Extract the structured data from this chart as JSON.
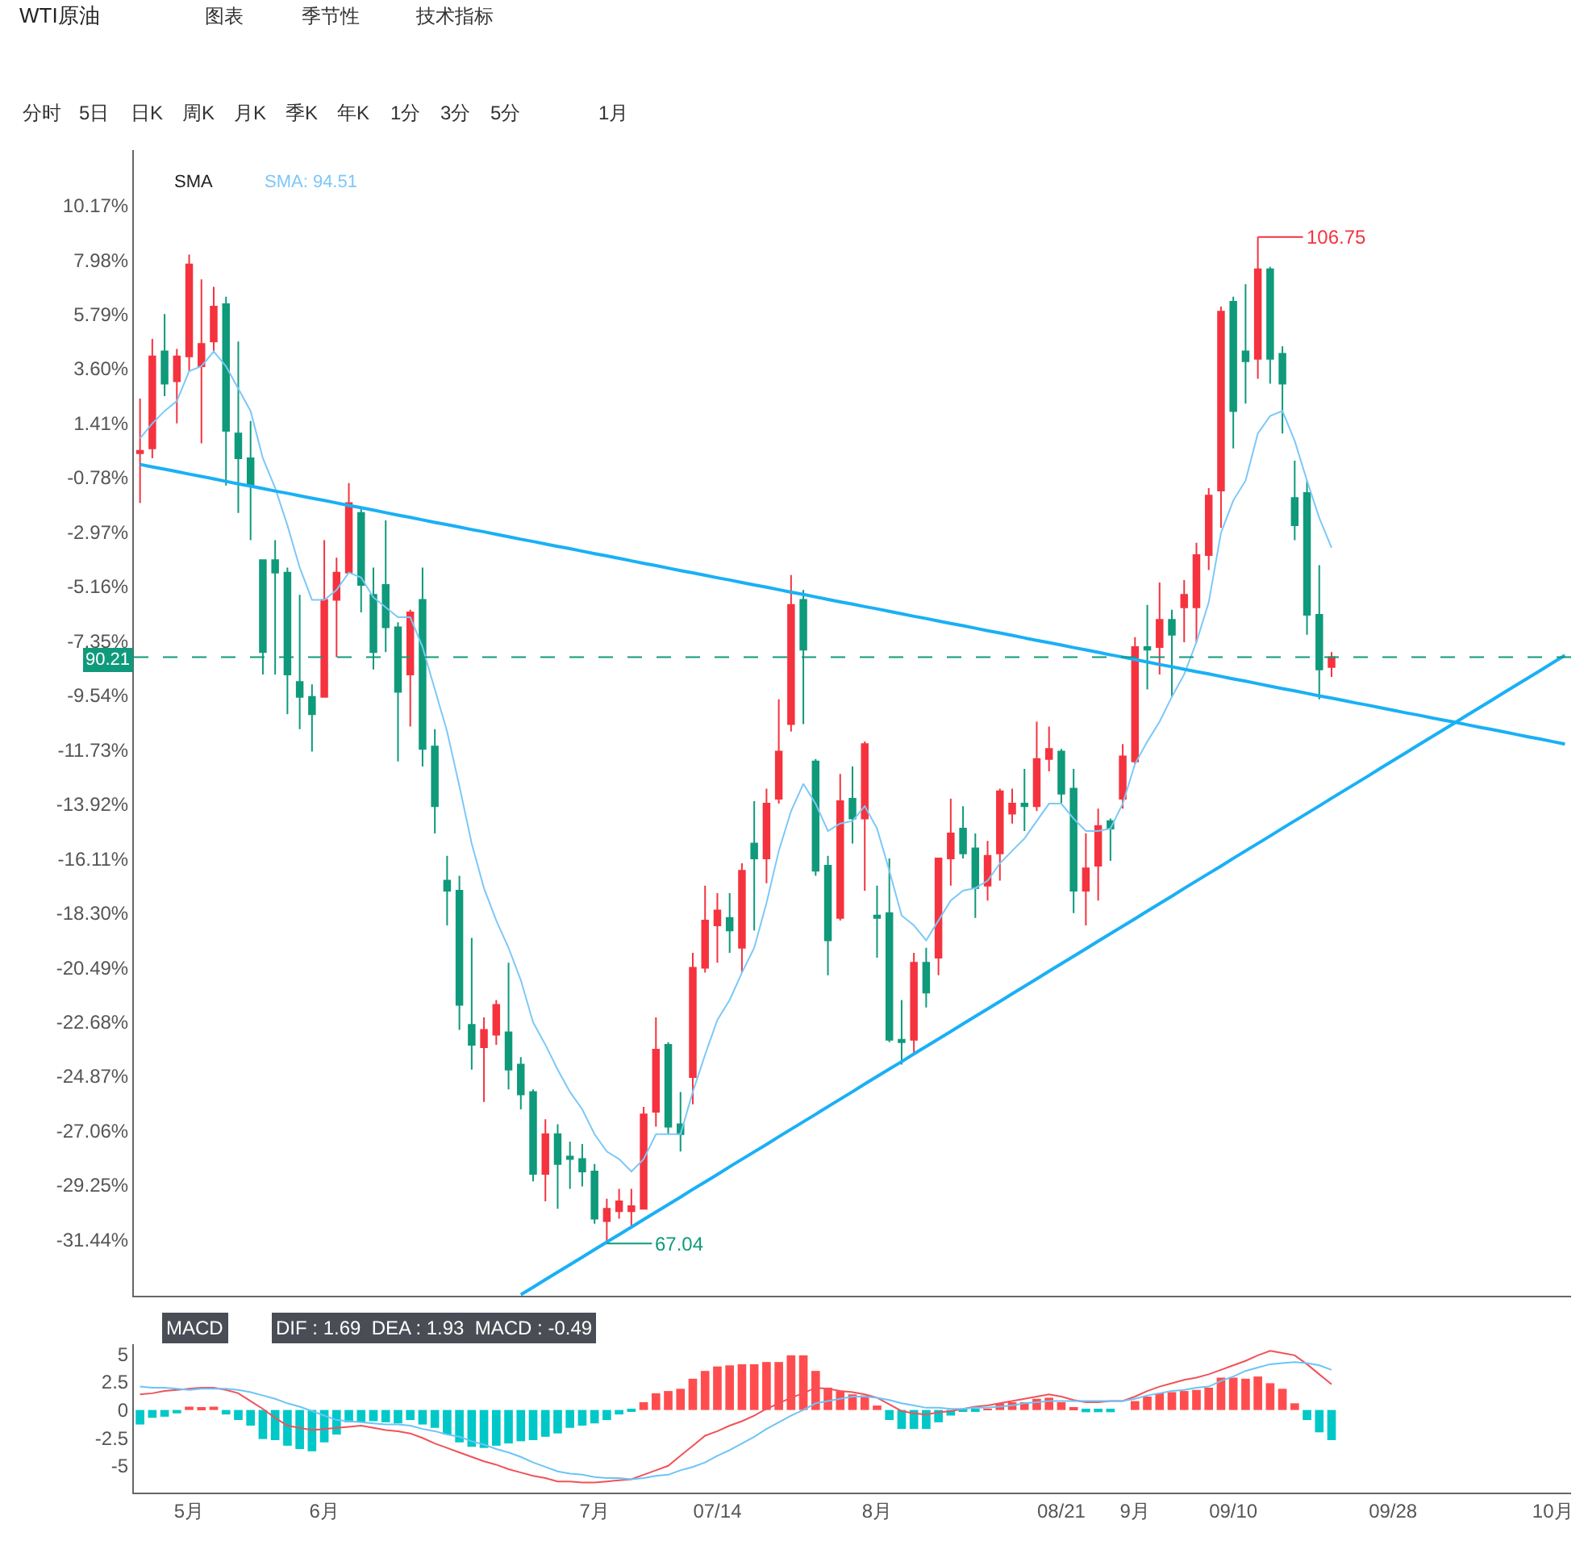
{
  "chart_data": [
    {
      "type": "candlestick",
      "title": "WTI原油",
      "annotations": [
        "图表",
        "季节性",
        "技术指标",
        "分时",
        "5日",
        "日K",
        "周K",
        "月K",
        "季K",
        "年K",
        "1分",
        "3分",
        "5分",
        "1月",
        "SMA",
        "SMA: 94.51",
        "106.75",
        "67.04",
        {
          "text": "90.21",
          "y": -8.0
        }
      ],
      "categories": [
        null,
        null,
        null,
        null,
        null,
        null,
        null,
        null,
        null,
        null,
        null,
        null,
        null,
        null,
        null,
        null,
        null,
        null,
        null,
        null,
        null,
        null,
        null,
        null,
        null,
        null,
        null,
        null,
        null,
        null,
        null,
        null,
        null,
        null,
        null,
        null,
        null,
        null,
        null,
        null,
        null,
        null,
        null,
        null,
        null,
        null,
        null,
        null,
        null,
        null,
        null,
        null,
        null,
        null,
        null,
        null,
        null,
        null,
        null,
        null,
        null,
        null,
        null,
        null,
        null,
        null,
        null,
        null,
        null,
        null,
        null,
        null,
        null,
        null,
        null,
        null,
        null,
        null,
        null,
        null,
        null,
        null,
        null,
        null,
        null,
        null,
        null,
        null,
        null,
        null,
        null,
        null,
        null,
        null,
        null,
        null,
        null,
        null,
        null,
        null,
        null,
        null,
        null,
        null,
        null,
        null,
        null,
        null,
        null,
        null,
        null,
        null,
        null,
        null,
        null,
        null,
        null
      ],
      "ohlc": [
        [
          0.2,
          2.4,
          -1.8,
          0.3
        ],
        [
          0.4,
          4.8,
          0.0,
          4.1
        ],
        [
          4.3,
          5.8,
          2.5,
          3.0
        ],
        [
          3.1,
          4.4,
          1.4,
          4.1
        ],
        [
          4.1,
          8.2,
          3.5,
          7.8
        ],
        [
          3.7,
          7.2,
          0.6,
          4.6
        ],
        [
          4.7,
          6.9,
          4.3,
          6.1
        ],
        [
          6.2,
          6.5,
          -1.1,
          1.1
        ],
        [
          1.0,
          4.7,
          -2.2,
          0.0
        ],
        [
          0.0,
          1.5,
          -3.3,
          -1.1
        ],
        [
          -4.1,
          -4.1,
          -8.7,
          -7.8
        ],
        [
          -4.1,
          -3.3,
          -8.7,
          -4.6
        ],
        [
          -4.6,
          -4.4,
          -10.3,
          -8.7
        ],
        [
          -9.0,
          -5.5,
          -10.9,
          -9.6
        ],
        [
          -9.6,
          -9.1,
          -11.8,
          -10.3
        ],
        [
          -9.6,
          -3.3,
          -9.6,
          -5.7
        ],
        [
          -5.7,
          -4.0,
          -8.0,
          -4.6
        ],
        [
          -4.6,
          -1.0,
          -4.6,
          -1.8
        ],
        [
          -2.2,
          -2.0,
          -6.2,
          -5.1
        ],
        [
          -5.5,
          -4.4,
          -8.5,
          -7.8
        ],
        [
          -5.1,
          -2.5,
          -7.8,
          -6.8
        ],
        [
          -6.8,
          -6.6,
          -12.2,
          -9.4
        ],
        [
          -8.7,
          -6.1,
          -10.8,
          -6.2
        ],
        [
          -5.7,
          -4.4,
          -12.4,
          -11.7
        ],
        [
          -11.6,
          -10.9,
          -15.1,
          -14.0
        ],
        [
          -17.0,
          -16.0,
          -18.8,
          -17.4
        ],
        [
          -17.4,
          -16.8,
          -23.0,
          -22.0
        ],
        [
          -22.8,
          -19.3,
          -24.6,
          -23.6
        ],
        [
          -23.7,
          -22.5,
          -25.9,
          -23.0
        ],
        [
          -23.2,
          -21.8,
          -23.6,
          -22.0
        ],
        [
          -23.1,
          -20.3,
          -25.4,
          -24.6
        ],
        [
          -24.4,
          -24.1,
          -26.2,
          -25.6
        ],
        [
          -25.5,
          -25.4,
          -29.1,
          -28.8
        ],
        [
          -28.8,
          -26.6,
          -29.9,
          -27.2
        ],
        [
          -27.2,
          -26.8,
          -30.2,
          -28.4
        ],
        [
          -28.1,
          -27.5,
          -29.4,
          -28.2
        ],
        [
          -28.2,
          -27.6,
          -29.3,
          -28.7
        ],
        [
          -28.7,
          -28.4,
          -30.8,
          -30.6
        ],
        [
          -30.7,
          -29.8,
          -31.6,
          -30.2
        ],
        [
          -30.3,
          -29.4,
          -30.6,
          -29.9
        ],
        [
          -30.3,
          -29.4,
          -30.9,
          -30.1
        ],
        [
          -30.2,
          -26.1,
          -30.2,
          -26.4
        ],
        [
          -26.3,
          -22.5,
          -26.9,
          -23.8
        ],
        [
          -23.6,
          -23.5,
          -27.2,
          -26.9
        ],
        [
          -26.8,
          -25.5,
          -27.9,
          -27.2
        ],
        [
          -24.9,
          -19.9,
          -26.0,
          -20.5
        ],
        [
          -20.5,
          -17.2,
          -20.7,
          -18.6
        ],
        [
          -18.8,
          -17.5,
          -20.3,
          -18.2
        ],
        [
          -18.5,
          -17.5,
          -19.9,
          -19.0
        ],
        [
          -19.7,
          -16.3,
          -20.7,
          -16.6
        ],
        [
          -15.5,
          -13.8,
          -19.0,
          -16.1
        ],
        [
          -16.1,
          -13.3,
          -17.1,
          -13.9
        ],
        [
          -13.7,
          -9.7,
          -13.9,
          -11.8
        ],
        [
          -10.7,
          -4.7,
          -11.0,
          -5.9
        ],
        [
          -5.7,
          -5.3,
          -10.7,
          -7.7
        ],
        [
          -12.2,
          -12.1,
          -16.8,
          -16.6
        ],
        [
          -16.4,
          -16.0,
          -20.8,
          -19.4
        ],
        [
          -18.5,
          -12.7,
          -18.6,
          -13.8
        ],
        [
          -13.7,
          -12.4,
          -15.5,
          -14.5
        ],
        [
          -14.5,
          -11.4,
          -17.4,
          -11.5
        ],
        [
          -18.4,
          -17.2,
          -20.1,
          -18.5
        ],
        [
          -18.3,
          -16.1,
          -23.5,
          -23.4
        ],
        [
          -23.4,
          -21.8,
          -24.4,
          -23.5
        ],
        [
          -23.4,
          -19.9,
          -24.0,
          -20.3
        ],
        [
          -20.3,
          -19.7,
          -22.1,
          -21.5
        ],
        [
          -20.1,
          -16.1,
          -20.8,
          -16.1
        ],
        [
          -16.1,
          -13.7,
          -17.2,
          -15.1
        ],
        [
          -14.9,
          -14.0,
          -16.1,
          -15.9
        ],
        [
          -15.7,
          -15.1,
          -18.5,
          -17.3
        ],
        [
          -17.2,
          -15.4,
          -17.8,
          -16.0
        ],
        [
          -15.9,
          -13.3,
          -17.0,
          -13.4
        ],
        [
          -14.3,
          -13.3,
          -14.7,
          -13.9
        ],
        [
          -13.9,
          -12.5,
          -15.0,
          -14.0
        ],
        [
          -14.0,
          -10.6,
          -14.2,
          -12.1
        ],
        [
          -12.1,
          -10.8,
          -12.6,
          -11.7
        ],
        [
          -11.8,
          -11.7,
          -13.9,
          -13.5
        ],
        [
          -13.3,
          -12.5,
          -18.3,
          -17.4
        ],
        [
          -17.4,
          -15.1,
          -18.8,
          -16.5
        ],
        [
          -16.4,
          -14.1,
          -17.8,
          -14.8
        ],
        [
          -14.6,
          -14.5,
          -16.2,
          -14.9
        ],
        [
          -13.7,
          -11.5,
          -14.1,
          -12.0
        ],
        [
          -12.2,
          -7.2,
          -12.3,
          -7.6
        ],
        [
          -7.6,
          -5.9,
          -9.3,
          -7.7
        ],
        [
          -7.6,
          -5.0,
          -8.7,
          -6.5
        ],
        [
          -6.5,
          -6.1,
          -9.6,
          -7.1
        ],
        [
          -6.0,
          -4.9,
          -7.4,
          -5.5
        ],
        [
          -6.0,
          -3.4,
          -7.4,
          -3.9
        ],
        [
          -3.9,
          -1.2,
          -4.5,
          -1.5
        ],
        [
          -1.3,
          6.1,
          -2.8,
          5.9
        ],
        [
          6.3,
          6.5,
          0.4,
          1.9
        ],
        [
          4.3,
          7.0,
          2.2,
          3.9
        ],
        [
          4.0,
          8.9,
          3.2,
          7.6
        ],
        [
          7.6,
          7.7,
          3.0,
          4.0
        ],
        [
          4.2,
          4.5,
          1.0,
          3.0
        ],
        [
          -1.6,
          -0.1,
          -3.3,
          -2.7
        ],
        [
          -1.4,
          -0.9,
          -7.1,
          -6.3
        ],
        [
          -6.3,
          -4.3,
          -9.7,
          -8.5
        ],
        [
          -8.4,
          -7.8,
          -8.8,
          -8.0
        ],
        null,
        null,
        null,
        null,
        null,
        null,
        null,
        null,
        null,
        null,
        null,
        null,
        null,
        null,
        null,
        null,
        null,
        null,
        null
      ],
      "colors": [
        "#f5333f",
        "#f5333f",
        "#0f9a7b",
        "#f5333f",
        "#f5333f",
        "#f5333f",
        "#f5333f",
        "#0f9a7b",
        "#0f9a7b",
        "#0f9a7b",
        "#0f9a7b",
        "#0f9a7b",
        "#0f9a7b",
        "#0f9a7b",
        "#0f9a7b",
        "#f5333f",
        "#f5333f",
        "#f5333f",
        "#0f9a7b",
        "#0f9a7b",
        "#0f9a7b",
        "#0f9a7b",
        "#f5333f",
        "#0f9a7b",
        "#0f9a7b",
        "#0f9a7b",
        "#0f9a7b",
        "#0f9a7b",
        "#f5333f",
        "#f5333f",
        "#0f9a7b",
        "#0f9a7b",
        "#0f9a7b",
        "#f5333f",
        "#0f9a7b",
        "#0f9a7b",
        "#0f9a7b",
        "#0f9a7b",
        "#f5333f",
        "#f5333f",
        "#f5333f",
        "#f5333f",
        "#f5333f",
        "#0f9a7b",
        "#0f9a7b",
        "#f5333f",
        "#f5333f",
        "#f5333f",
        "#0f9a7b",
        "#f5333f",
        "#0f9a7b",
        "#f5333f",
        "#f5333f",
        "#f5333f",
        "#0f9a7b",
        "#0f9a7b",
        "#0f9a7b",
        "#f5333f",
        "#0f9a7b",
        "#f5333f",
        "#0f9a7b",
        "#0f9a7b",
        "#0f9a7b",
        "#f5333f",
        "#0f9a7b",
        "#f5333f",
        "#f5333f",
        "#0f9a7b",
        "#0f9a7b",
        "#f5333f",
        "#f5333f",
        "#f5333f",
        "#0f9a7b",
        "#f5333f",
        "#f5333f",
        "#0f9a7b",
        "#0f9a7b",
        "#f5333f",
        "#f5333f",
        "#0f9a7b",
        "#f5333f",
        "#f5333f",
        "#0f9a7b",
        "#f5333f",
        "#0f9a7b",
        "#f5333f",
        "#f5333f",
        "#f5333f",
        "#f5333f",
        "#0f9a7b",
        "#0f9a7b",
        "#f5333f",
        "#0f9a7b",
        "#0f9a7b",
        "#0f9a7b",
        "#0f9a7b",
        "#0f9a7b",
        "#f5333f",
        null,
        null,
        null,
        null,
        null,
        null,
        null,
        null,
        null,
        null,
        null,
        null,
        null,
        null,
        null,
        null,
        null,
        null,
        null
      ],
      "series": [
        {
          "type": "line",
          "color": "#7cc8f8",
          "values": [
            0.8,
            1.4,
            1.9,
            2.3,
            3.5,
            3.7,
            4.3,
            3.7,
            2.8,
            1.9,
            0.0,
            -1.2,
            -2.7,
            -4.4,
            -5.7,
            -5.7,
            -5.3,
            -4.6,
            -4.8,
            -5.6,
            -6.0,
            -6.4,
            -6.4,
            -7.6,
            -9.3,
            -11.0,
            -13.2,
            -15.5,
            -17.3,
            -18.6,
            -19.7,
            -21.0,
            -22.7,
            -23.6,
            -24.6,
            -25.5,
            -26.2,
            -27.2,
            -27.9,
            -28.2,
            -28.7,
            -28.2,
            -27.2,
            -27.2,
            -27.2,
            -25.5,
            -24.0,
            -22.6,
            -21.8,
            -20.7,
            -19.7,
            -17.9,
            -15.8,
            -14.2,
            -13.1,
            -13.9,
            -15.0,
            -14.7,
            -14.6,
            -14.0,
            -14.9,
            -16.6,
            -18.4,
            -18.8,
            -19.4,
            -18.6,
            -17.8,
            -17.4,
            -17.3,
            -17.0,
            -16.3,
            -15.8,
            -15.3,
            -14.6,
            -13.9,
            -13.9,
            -14.5,
            -15.0,
            -15.0,
            -14.9,
            -13.9,
            -12.3,
            -11.4,
            -10.6,
            -9.6,
            -8.7,
            -7.4,
            -5.8,
            -3.0,
            -1.7,
            -0.9,
            1.0,
            1.7,
            1.9,
            0.7,
            -0.9,
            -2.4,
            -3.6,
            null,
            null,
            null,
            null,
            null,
            null,
            null,
            null,
            null,
            null,
            null,
            null,
            null,
            null,
            null,
            null,
            null,
            null,
            null
          ]
        },
        {
          "type": "line",
          "color": "#1ab0f5",
          "values": [
            -0.25,
            -0.35,
            -0.44,
            -0.54,
            -0.64,
            -0.73,
            -0.83,
            -0.93,
            -1.03,
            -1.12,
            -1.22,
            -1.32,
            -1.41,
            -1.51,
            -1.61,
            -1.7,
            -1.8,
            -1.9,
            -1.99,
            -2.09,
            -2.19,
            -2.29,
            -2.38,
            -2.48,
            -2.58,
            -2.67,
            -2.77,
            -2.87,
            -2.96,
            -3.06,
            -3.16,
            -3.26,
            -3.35,
            -3.45,
            -3.55,
            -3.64,
            -3.74,
            -3.84,
            -3.93,
            -4.03,
            -4.13,
            -4.23,
            -4.32,
            -4.42,
            -4.52,
            -4.61,
            -4.71,
            -4.81,
            -4.9,
            -5.0,
            -5.1,
            -5.19,
            -5.29,
            -5.39,
            -5.48,
            -5.58,
            -5.68,
            -5.78,
            -5.87,
            -5.97,
            -6.06,
            -6.16,
            -6.26,
            -6.36,
            -6.45,
            -6.55,
            -6.65,
            -6.74,
            -6.84,
            -6.94,
            -7.03,
            -7.13,
            -7.23,
            -7.33,
            -7.42,
            -7.52,
            -7.62,
            -7.71,
            -7.81,
            -7.91,
            -8.0,
            -8.1,
            -8.2,
            -8.3,
            -8.39,
            -8.49,
            -8.59,
            -8.68,
            -8.78,
            -8.88,
            -8.97,
            -9.07,
            -9.17,
            -9.27,
            -9.36,
            -9.46,
            -9.56,
            -9.65,
            -9.75,
            -9.85,
            -9.94,
            -10.04,
            -10.14,
            -10.24,
            -10.33,
            -10.43,
            -10.53,
            -10.62,
            -10.72,
            -10.82,
            -10.91,
            -11.01,
            -11.11,
            -11.21,
            -11.3,
            -11.4,
            -11.5
          ]
        },
        {
          "type": "line",
          "color": "#1ab0f5",
          "values": [
            null,
            null,
            null,
            null,
            null,
            null,
            null,
            null,
            null,
            null,
            null,
            null,
            null,
            null,
            null,
            null,
            null,
            null,
            null,
            null,
            null,
            null,
            null,
            null,
            null,
            null,
            null,
            null,
            null,
            null,
            null,
            -33.66,
            -33.36,
            -33.05,
            -32.75,
            -32.45,
            -32.15,
            -31.84,
            -31.54,
            -31.24,
            -30.94,
            -30.63,
            -30.33,
            -30.03,
            -29.73,
            -29.42,
            -29.12,
            -28.82,
            -28.51,
            -28.21,
            -27.91,
            -27.61,
            -27.3,
            -27.0,
            -26.7,
            -26.4,
            -26.09,
            -25.79,
            -25.49,
            -25.18,
            -24.88,
            -24.58,
            -24.28,
            -23.97,
            -23.67,
            -23.37,
            -23.07,
            -22.76,
            -22.46,
            -22.16,
            -21.86,
            -21.55,
            -21.25,
            -20.95,
            -20.64,
            -20.34,
            -20.04,
            -19.74,
            -19.43,
            -19.13,
            -18.83,
            -18.53,
            -18.22,
            -17.92,
            -17.62,
            -17.31,
            -17.01,
            -16.71,
            -16.41,
            -16.1,
            -15.8,
            -15.5,
            -15.2,
            -14.89,
            -14.59,
            -14.29,
            -13.99,
            -13.68,
            -13.38,
            -13.08,
            -12.78,
            -12.47,
            -12.17,
            -11.87,
            -11.56,
            -11.26,
            -10.96,
            -10.66,
            -10.35,
            -10.05,
            -9.75,
            -9.44,
            -9.14,
            -8.84,
            -8.54,
            -8.23,
            -7.93
          ]
        }
      ],
      "ref_lines": [
        {
          "axis": "y",
          "value": -8.0,
          "color": "#0f9a7b",
          "line_style": "dashed"
        }
      ],
      "ylim": [
        -33.7,
        12.4
      ],
      "yticks": [
        {
          "value": 10.17,
          "label": "10.17%"
        },
        {
          "value": 7.98,
          "label": "7.98%"
        },
        {
          "value": 5.79,
          "label": "5.79%"
        },
        {
          "value": 3.6,
          "label": "3.60%"
        },
        {
          "value": 1.41,
          "label": "1.41%"
        },
        {
          "value": -0.78,
          "label": "-0.78%"
        },
        {
          "value": -2.97,
          "label": "-2.97%"
        },
        {
          "value": -5.16,
          "label": "-5.16%"
        },
        {
          "value": -7.35,
          "label": "-7.35%"
        },
        {
          "value": -9.54,
          "label": "-9.54%"
        },
        {
          "value": -11.73,
          "label": "-11.73%"
        },
        {
          "value": -13.92,
          "label": "-13.92%"
        },
        {
          "value": -16.11,
          "label": "-16.11%"
        },
        {
          "value": -18.3,
          "label": "-18.30%"
        },
        {
          "value": -20.49,
          "label": "-20.49%"
        },
        {
          "value": -22.68,
          "label": "-22.68%"
        },
        {
          "value": -24.87,
          "label": "-24.87%"
        },
        {
          "value": -27.06,
          "label": "-27.06%"
        },
        {
          "value": -29.25,
          "label": "-29.25%"
        },
        {
          "value": -31.44,
          "label": "-31.44%"
        }
      ],
      "tick_labels": "y"
    },
    {
      "type": "bar",
      "annotations": [
        "MACD",
        "DIF : 1.69  DEA : 1.93  MACD : -0.49"
      ],
      "categories": [
        null,
        null,
        null,
        null,
        "5月",
        null,
        null,
        null,
        null,
        null,
        null,
        null,
        null,
        null,
        null,
        "6月",
        null,
        null,
        null,
        null,
        null,
        null,
        null,
        null,
        null,
        null,
        null,
        null,
        null,
        null,
        null,
        null,
        null,
        null,
        null,
        null,
        null,
        "7月",
        null,
        null,
        null,
        null,
        null,
        null,
        null,
        null,
        null,
        "07/14",
        null,
        null,
        null,
        null,
        null,
        null,
        null,
        null,
        null,
        null,
        null,
        null,
        "8月",
        null,
        null,
        null,
        null,
        null,
        null,
        null,
        null,
        null,
        null,
        null,
        null,
        null,
        null,
        "08/21",
        null,
        null,
        null,
        null,
        null,
        "9月",
        null,
        null,
        null,
        null,
        null,
        null,
        null,
        "09/10",
        null,
        null,
        null,
        null,
        null,
        null,
        null,
        null,
        null,
        null,
        null,
        null,
        "09/28",
        null,
        null,
        null,
        null,
        null,
        null,
        null,
        null,
        null,
        null,
        null,
        null,
        "10月",
        null
      ],
      "values": [
        -1.3,
        -0.7,
        -0.6,
        -0.3,
        0.3,
        0.2,
        0.3,
        -0.4,
        -0.9,
        -1.4,
        -2.6,
        -2.7,
        -3.2,
        -3.5,
        -3.7,
        -2.9,
        -2.2,
        -1.1,
        -1.1,
        -1.0,
        -1.1,
        -1.2,
        -0.9,
        -1.3,
        -1.6,
        -2.2,
        -2.9,
        -3.3,
        -3.4,
        -3.2,
        -3.0,
        -2.8,
        -2.7,
        -2.4,
        -2.1,
        -1.6,
        -1.4,
        -1.2,
        -0.9,
        -0.4,
        -0.1,
        0.7,
        1.5,
        1.7,
        1.9,
        2.8,
        3.5,
        3.9,
        4.0,
        4.1,
        4.1,
        4.3,
        4.3,
        4.9,
        4.9,
        3.5,
        2.0,
        1.7,
        1.4,
        1.3,
        0.4,
        -0.9,
        -1.7,
        -1.7,
        -1.7,
        -1.1,
        -0.5,
        -0.1,
        -0.1,
        0.1,
        0.6,
        0.7,
        0.7,
        1.0,
        1.1,
        0.7,
        0.2,
        -0.2,
        -0.2,
        -0.2,
        0.0,
        0.8,
        1.2,
        1.5,
        1.6,
        1.7,
        1.8,
        2.0,
        2.9,
        2.9,
        2.8,
        3.0,
        2.4,
        1.9,
        0.6,
        -0.9,
        -2.0,
        -2.7,
        null,
        null,
        null,
        null,
        null,
        null,
        null,
        null,
        null,
        null,
        null,
        null,
        null,
        null,
        null,
        null,
        null,
        null,
        null
      ],
      "colors": [
        "#00c8c8",
        "#00c8c8",
        "#00c8c8",
        "#00c8c8",
        "#ff4d4f",
        "#ff4d4f",
        "#ff4d4f",
        "#00c8c8",
        "#00c8c8",
        "#00c8c8",
        "#00c8c8",
        "#00c8c8",
        "#00c8c8",
        "#00c8c8",
        "#00c8c8",
        "#00c8c8",
        "#00c8c8",
        "#00c8c8",
        "#00c8c8",
        "#00c8c8",
        "#00c8c8",
        "#00c8c8",
        "#00c8c8",
        "#00c8c8",
        "#00c8c8",
        "#00c8c8",
        "#00c8c8",
        "#00c8c8",
        "#00c8c8",
        "#00c8c8",
        "#00c8c8",
        "#00c8c8",
        "#00c8c8",
        "#00c8c8",
        "#00c8c8",
        "#00c8c8",
        "#00c8c8",
        "#00c8c8",
        "#00c8c8",
        "#00c8c8",
        "#00c8c8",
        "#ff4d4f",
        "#ff4d4f",
        "#ff4d4f",
        "#ff4d4f",
        "#ff4d4f",
        "#ff4d4f",
        "#ff4d4f",
        "#ff4d4f",
        "#ff4d4f",
        "#ff4d4f",
        "#ff4d4f",
        "#ff4d4f",
        "#ff4d4f",
        "#ff4d4f",
        "#ff4d4f",
        "#ff4d4f",
        "#ff4d4f",
        "#ff4d4f",
        "#ff4d4f",
        "#ff4d4f",
        "#00c8c8",
        "#00c8c8",
        "#00c8c8",
        "#00c8c8",
        "#00c8c8",
        "#00c8c8",
        "#00c8c8",
        "#00c8c8",
        "#ff4d4f",
        "#ff4d4f",
        "#ff4d4f",
        "#ff4d4f",
        "#ff4d4f",
        "#ff4d4f",
        "#ff4d4f",
        "#ff4d4f",
        "#00c8c8",
        "#00c8c8",
        "#00c8c8",
        "#00c8c8",
        "#ff4d4f",
        "#ff4d4f",
        "#ff4d4f",
        "#ff4d4f",
        "#ff4d4f",
        "#ff4d4f",
        "#ff4d4f",
        "#ff4d4f",
        "#ff4d4f",
        "#ff4d4f",
        "#ff4d4f",
        "#ff4d4f",
        "#ff4d4f",
        "#ff4d4f",
        "#00c8c8",
        "#00c8c8",
        "#00c8c8",
        null,
        null,
        null,
        null,
        null,
        null,
        null,
        null,
        null,
        null,
        null,
        null,
        null,
        null,
        null,
        null,
        null,
        null,
        null
      ],
      "series": [
        {
          "type": "line",
          "color": "#f0525a",
          "values": [
            1.4,
            1.5,
            1.7,
            1.8,
            1.9,
            2.0,
            2.0,
            1.8,
            1.5,
            0.8,
            0.1,
            -0.7,
            -1.4,
            -1.6,
            -1.8,
            -1.7,
            -1.6,
            -1.5,
            -1.4,
            -1.6,
            -1.8,
            -1.9,
            -2.1,
            -2.5,
            -3.0,
            -3.4,
            -3.8,
            -4.2,
            -4.6,
            -4.9,
            -5.3,
            -5.6,
            -5.9,
            -6.1,
            -6.4,
            -6.4,
            -6.5,
            -6.5,
            -6.4,
            -6.3,
            -6.2,
            -5.8,
            -5.4,
            -5.0,
            -4.1,
            -3.2,
            -2.3,
            -1.9,
            -1.4,
            -1.0,
            -0.5,
            0.1,
            0.6,
            1.1,
            1.5,
            2.0,
            1.9,
            1.7,
            1.6,
            1.4,
            1.1,
            0.5,
            -0.1,
            -0.3,
            -0.4,
            -0.2,
            -0.1,
            0.1,
            0.3,
            0.4,
            0.6,
            0.8,
            1.0,
            1.2,
            1.4,
            1.2,
            0.9,
            0.7,
            0.7,
            0.8,
            0.8,
            1.2,
            1.7,
            2.1,
            2.4,
            2.7,
            2.9,
            3.2,
            3.6,
            4.0,
            4.4,
            4.9,
            5.3,
            5.1,
            4.9,
            4.1,
            3.2,
            2.3,
            null,
            null,
            null,
            null,
            null,
            null,
            null,
            null,
            null,
            null,
            null,
            null,
            null,
            null,
            null,
            null,
            null,
            null,
            null
          ]
        },
        {
          "type": "line",
          "color": "#6cc4f7",
          "values": [
            2.1,
            2.0,
            2.0,
            1.9,
            1.8,
            1.9,
            1.9,
            1.9,
            1.8,
            1.6,
            1.3,
            1.0,
            0.6,
            0.3,
            -0.1,
            -0.5,
            -0.9,
            -1.0,
            -1.1,
            -1.2,
            -1.3,
            -1.3,
            -1.4,
            -1.7,
            -1.9,
            -2.2,
            -2.4,
            -2.8,
            -3.1,
            -3.5,
            -3.8,
            -4.2,
            -4.7,
            -5.1,
            -5.5,
            -5.7,
            -5.8,
            -6.0,
            -6.1,
            -6.1,
            -6.2,
            -6.1,
            -5.9,
            -5.8,
            -5.4,
            -5.1,
            -4.7,
            -4.1,
            -3.6,
            -3.0,
            -2.4,
            -1.7,
            -1.1,
            -0.5,
            0.0,
            0.6,
            0.8,
            1.0,
            1.2,
            1.2,
            1.1,
            0.9,
            0.6,
            0.4,
            0.2,
            0.2,
            0.1,
            0.1,
            0.2,
            0.2,
            0.3,
            0.4,
            0.6,
            0.7,
            0.8,
            0.8,
            0.8,
            0.8,
            0.8,
            0.8,
            0.8,
            1.0,
            1.3,
            1.5,
            1.7,
            1.8,
            2.0,
            2.1,
            2.6,
            3.0,
            3.5,
            3.8,
            4.1,
            4.2,
            4.3,
            4.2,
            4.0,
            3.6,
            null,
            null,
            null,
            null,
            null,
            null,
            null,
            null,
            null,
            null,
            null,
            null,
            null,
            null,
            null,
            null,
            null,
            null,
            null
          ]
        }
      ],
      "ylim": [
        -7.4,
        5.9
      ],
      "yticks": [
        5,
        2.5,
        0,
        -2.5,
        -5
      ]
    }
  ]
}
